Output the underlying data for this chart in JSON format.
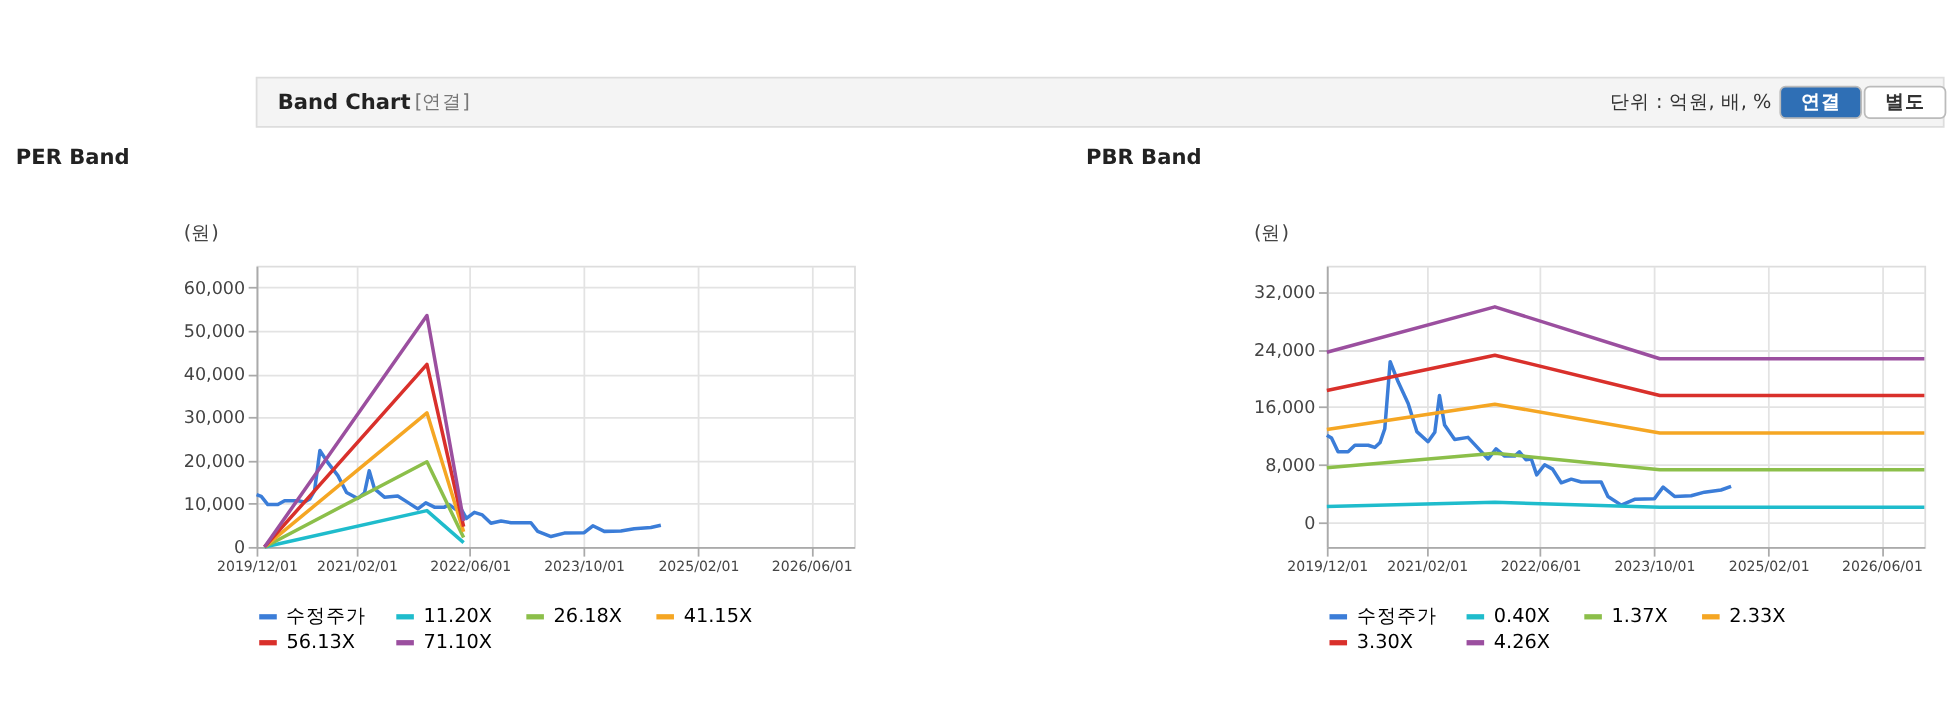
{
  "chart_data": [
    {
      "type": "line",
      "title": "PER Band",
      "ylabel": "(원)",
      "annotations": [
        "Band Chart",
        "[연결]",
        "단위 : 억원, 배, %",
        "연결",
        "별도"
      ],
      "xlim": [
        "2019-12-01",
        "2026-12-01"
      ],
      "xticks": [
        {
          "value": "2019-12-01",
          "label": "2019/12/01"
        },
        {
          "value": "2021-02-01",
          "label": "2021/02/01"
        },
        {
          "value": "2022-06-01",
          "label": "2022/06/01"
        },
        {
          "value": "2023-10-01",
          "label": "2023/10/01"
        },
        {
          "value": "2025-02-01",
          "label": "2025/02/01"
        },
        {
          "value": "2026-06-01",
          "label": "2026/06/01"
        }
      ],
      "ylim": [
        0,
        65000
      ],
      "yticks": [
        {
          "value": 0,
          "label": "0"
        },
        {
          "value": 10000,
          "label": "10,000"
        },
        {
          "value": 20000,
          "label": "20,000"
        },
        {
          "value": 30000,
          "label": "30,000"
        },
        {
          "value": 40000,
          "label": "40,000"
        },
        {
          "value": 50000,
          "label": "50,000"
        },
        {
          "value": 60000,
          "label": "60,000"
        }
      ],
      "grid": true,
      "legend": "bottom",
      "line_style": "solid",
      "series": [
        {
          "name": "수정주가",
          "color": "#3b7dd8",
          "x": [
            "2019-12-01",
            "2019-12-21",
            "2020-01-18",
            "2020-03-01",
            "2020-03-30",
            "2020-05-26",
            "2020-06-23",
            "2020-07-16",
            "2020-08-05",
            "2020-08-28",
            "2020-10-01",
            "2020-11-13",
            "2020-12-20",
            "2021-02-06",
            "2021-03-07",
            "2021-03-27",
            "2021-04-18",
            "2021-05-31",
            "2021-07-27",
            "2021-09-08",
            "2021-10-21",
            "2021-11-24",
            "2021-12-31",
            "2022-02-12",
            "2022-03-04",
            "2022-04-01",
            "2022-04-24",
            "2022-05-17",
            "2022-06-20",
            "2022-07-24",
            "2022-08-30",
            "2022-10-12",
            "2022-11-24",
            "2023-02-17",
            "2023-03-18",
            "2023-05-14",
            "2023-07-10",
            "2023-10-03",
            "2023-11-09",
            "2023-12-28",
            "2024-03-08",
            "2024-05-04",
            "2024-07-14",
            "2024-08-26"
          ],
          "values": [
            12100,
            11700,
            9800,
            9800,
            10700,
            10700,
            10400,
            11100,
            13000,
            22300,
            19500,
            16500,
            12600,
            11200,
            12500,
            17600,
            13500,
            11500,
            11800,
            10300,
            8800,
            10200,
            9200,
            9200,
            9800,
            8700,
            8800,
            6600,
            8000,
            7400,
            5500,
            6000,
            5600,
            5600,
            3600,
            2400,
            3200,
            3300,
            4900,
            3600,
            3700,
            4200,
            4500,
            5000
          ]
        },
        {
          "name": "11.20X",
          "color": "#1fbccc",
          "x": [
            "2020-01-04",
            "2021-11-29",
            "2022-05-05"
          ],
          "values": [
            0,
            8400,
            1000
          ]
        },
        {
          "name": "26.18X",
          "color": "#8cbf4a",
          "x": [
            "2020-01-04",
            "2021-11-29",
            "2022-05-05"
          ],
          "values": [
            0,
            19700,
            2200
          ]
        },
        {
          "name": "41.15X",
          "color": "#f5a623",
          "x": [
            "2020-01-04",
            "2021-11-29",
            "2022-05-05"
          ],
          "values": [
            0,
            31000,
            3500
          ]
        },
        {
          "name": "56.13X",
          "color": "#d9302b",
          "x": [
            "2020-01-04",
            "2021-11-29",
            "2022-05-05"
          ],
          "values": [
            0,
            42200,
            4700
          ]
        },
        {
          "name": "71.10X",
          "color": "#9b4f9f",
          "x": [
            "2020-01-04",
            "2021-11-29",
            "2022-05-05"
          ],
          "values": [
            0,
            53500,
            6000
          ]
        }
      ]
    },
    {
      "type": "line",
      "title": "PBR Band",
      "ylabel": "(원)",
      "xlim": [
        "2019-12-01",
        "2026-12-01"
      ],
      "xticks": [
        {
          "value": "2019-12-01",
          "label": "2019/12/01"
        },
        {
          "value": "2021-02-01",
          "label": "2021/02/01"
        },
        {
          "value": "2022-06-01",
          "label": "2022/06/01"
        },
        {
          "value": "2023-10-01",
          "label": "2023/10/01"
        },
        {
          "value": "2025-02-01",
          "label": "2025/02/01"
        },
        {
          "value": "2026-06-01",
          "label": "2026/06/01"
        }
      ],
      "ylim": [
        -3400,
        35600
      ],
      "yticks": [
        {
          "value": 0,
          "label": "0"
        },
        {
          "value": 8000,
          "label": "8,000"
        },
        {
          "value": 16000,
          "label": "16,000"
        },
        {
          "value": 24000,
          "label": "24,000"
        },
        {
          "value": 32000,
          "label": "32,000"
        }
      ],
      "grid": true,
      "legend": "bottom",
      "line_style": "solid",
      "series": [
        {
          "name": "수정주가",
          "color": "#3b7dd8",
          "x": [
            "2019-12-01",
            "2019-12-21",
            "2020-01-18",
            "2020-03-01",
            "2020-03-30",
            "2020-05-26",
            "2020-06-23",
            "2020-07-16",
            "2020-08-05",
            "2020-08-28",
            "2020-10-01",
            "2020-11-13",
            "2020-12-20",
            "2021-02-06",
            "2021-03-07",
            "2021-03-27",
            "2021-04-18",
            "2021-05-31",
            "2021-07-27",
            "2021-09-08",
            "2021-10-21",
            "2021-11-24",
            "2021-12-31",
            "2022-02-12",
            "2022-03-04",
            "2022-04-01",
            "2022-04-24",
            "2022-05-17",
            "2022-06-20",
            "2022-07-24",
            "2022-08-30",
            "2022-10-12",
            "2022-11-24",
            "2023-02-17",
            "2023-03-18",
            "2023-05-14",
            "2023-07-10",
            "2023-10-03",
            "2023-11-09",
            "2023-12-28",
            "2024-03-08",
            "2024-05-04",
            "2024-07-14",
            "2024-08-26"
          ],
          "values": [
            12100,
            11700,
            9800,
            9800,
            10700,
            10700,
            10400,
            11100,
            13000,
            22300,
            19500,
            16500,
            12600,
            11200,
            12500,
            17600,
            13500,
            11500,
            11800,
            10300,
            8800,
            10200,
            9200,
            9200,
            9800,
            8700,
            8800,
            6600,
            8000,
            7400,
            5500,
            6000,
            5600,
            5600,
            3600,
            2400,
            3200,
            3300,
            4900,
            3600,
            3700,
            4200,
            4500,
            5000
          ]
        },
        {
          "name": "0.40X",
          "color": "#1fbccc",
          "x": [
            "2019-12-01",
            "2021-11-19",
            "2023-10-26",
            "2026-12-01"
          ],
          "values": [
            2200,
            2800,
            2100,
            2100
          ]
        },
        {
          "name": "1.37X",
          "color": "#8cbf4a",
          "x": [
            "2019-12-01",
            "2021-11-19",
            "2023-10-26",
            "2026-12-01"
          ],
          "values": [
            7600,
            9600,
            7300,
            7300
          ]
        },
        {
          "name": "2.33X",
          "color": "#f5a623",
          "x": [
            "2019-12-01",
            "2021-11-19",
            "2023-10-26",
            "2026-12-01"
          ],
          "values": [
            12900,
            16400,
            12400,
            12400
          ]
        },
        {
          "name": "3.30X",
          "color": "#d9302b",
          "x": [
            "2019-12-01",
            "2021-11-19",
            "2023-10-26",
            "2026-12-01"
          ],
          "values": [
            18300,
            23200,
            17600,
            17600
          ]
        },
        {
          "name": "4.26X",
          "color": "#9b4f9f",
          "x": [
            "2019-12-01",
            "2021-11-19",
            "2023-10-26",
            "2026-12-01"
          ],
          "values": [
            23600,
            29900,
            22700,
            22700
          ]
        }
      ]
    }
  ]
}
